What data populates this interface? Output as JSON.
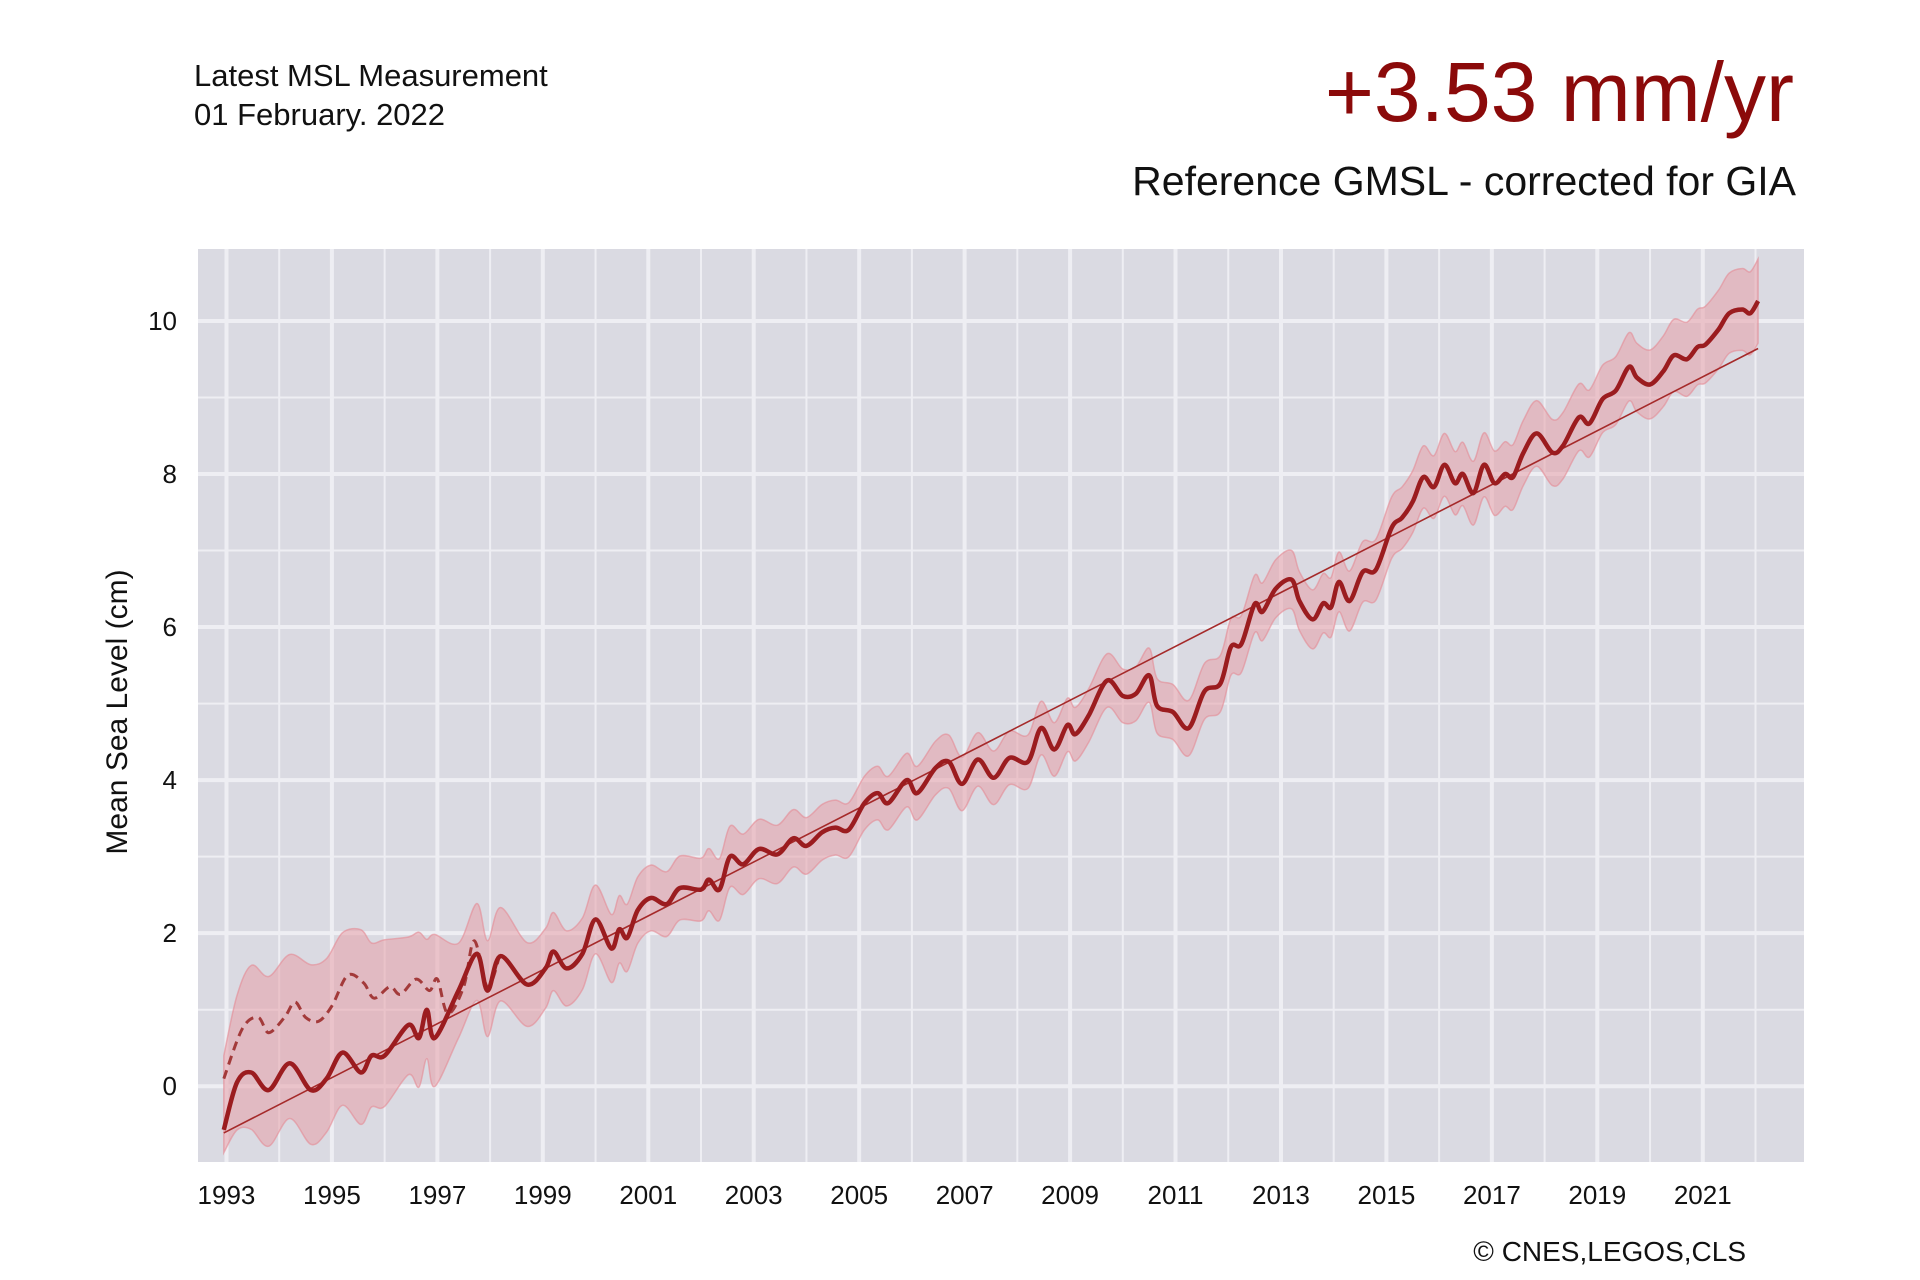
{
  "header": {
    "latest_label": "Latest MSL Measurement",
    "latest_date": "01 February. 2022",
    "rate": "+3.53 mm/yr",
    "subtitle": "Reference GMSL - corrected for GIA",
    "credit": "© CNES,LEGOS,CLS"
  },
  "colors": {
    "accent": "#8b0a0a",
    "series": "#9b1c1f",
    "band": "#e8a0a8",
    "plot_bg": "#dadae2",
    "grid": "#eeeef3"
  },
  "chart_data": {
    "type": "line",
    "title": "Reference GMSL - corrected for GIA",
    "xlabel": "",
    "ylabel": "Mean Sea Level (cm)",
    "xlim": [
      1992.46,
      2022.92
    ],
    "ylim": [
      -0.99,
      10.94
    ],
    "grid": true,
    "x_ticks": [
      "1993",
      "1995",
      "1997",
      "1999",
      "2001",
      "2003",
      "2005",
      "2007",
      "2009",
      "2011",
      "2013",
      "2015",
      "2017",
      "2019",
      "2021"
    ],
    "y_ticks": [
      "0",
      "2",
      "4",
      "6",
      "8",
      "10"
    ],
    "series": [
      {
        "style": "solid",
        "points": [
          [
            1992.95,
            -0.57
          ],
          [
            1993.2,
            0.05
          ],
          [
            1993.47,
            0.18
          ],
          [
            1993.8,
            -0.05
          ],
          [
            1994.2,
            0.3
          ],
          [
            1994.6,
            -0.05
          ],
          [
            1994.9,
            0.1
          ],
          [
            1995.2,
            0.44
          ],
          [
            1995.55,
            0.18
          ],
          [
            1995.75,
            0.4
          ],
          [
            1996.0,
            0.4
          ],
          [
            1996.45,
            0.8
          ],
          [
            1996.65,
            0.63
          ],
          [
            1996.8,
            1.0
          ],
          [
            1996.95,
            0.63
          ],
          [
            1997.4,
            1.25
          ],
          [
            1997.75,
            1.73
          ],
          [
            1997.95,
            1.25
          ],
          [
            1998.2,
            1.7
          ],
          [
            1998.7,
            1.33
          ],
          [
            1999.05,
            1.54
          ],
          [
            1999.2,
            1.76
          ],
          [
            1999.45,
            1.54
          ],
          [
            1999.75,
            1.73
          ],
          [
            2000.0,
            2.18
          ],
          [
            2000.3,
            1.8
          ],
          [
            2000.45,
            2.05
          ],
          [
            2000.6,
            1.94
          ],
          [
            2000.8,
            2.3
          ],
          [
            2001.05,
            2.46
          ],
          [
            2001.35,
            2.38
          ],
          [
            2001.6,
            2.59
          ],
          [
            2002.0,
            2.57
          ],
          [
            2002.15,
            2.7
          ],
          [
            2002.35,
            2.57
          ],
          [
            2002.55,
            3.0
          ],
          [
            2002.8,
            2.9
          ],
          [
            2003.1,
            3.1
          ],
          [
            2003.45,
            3.03
          ],
          [
            2003.75,
            3.24
          ],
          [
            2004.0,
            3.14
          ],
          [
            2004.3,
            3.32
          ],
          [
            2004.55,
            3.38
          ],
          [
            2004.8,
            3.35
          ],
          [
            2005.1,
            3.7
          ],
          [
            2005.35,
            3.83
          ],
          [
            2005.55,
            3.7
          ],
          [
            2005.9,
            4.0
          ],
          [
            2006.1,
            3.83
          ],
          [
            2006.45,
            4.16
          ],
          [
            2006.7,
            4.24
          ],
          [
            2006.95,
            3.95
          ],
          [
            2007.25,
            4.27
          ],
          [
            2007.55,
            4.03
          ],
          [
            2007.85,
            4.29
          ],
          [
            2008.2,
            4.24
          ],
          [
            2008.45,
            4.68
          ],
          [
            2008.7,
            4.4
          ],
          [
            2008.95,
            4.72
          ],
          [
            2009.1,
            4.6
          ],
          [
            2009.35,
            4.84
          ],
          [
            2009.7,
            5.3
          ],
          [
            2010.0,
            5.1
          ],
          [
            2010.25,
            5.13
          ],
          [
            2010.5,
            5.37
          ],
          [
            2010.65,
            4.97
          ],
          [
            2010.95,
            4.89
          ],
          [
            2011.25,
            4.68
          ],
          [
            2011.55,
            5.16
          ],
          [
            2011.85,
            5.26
          ],
          [
            2012.05,
            5.74
          ],
          [
            2012.25,
            5.78
          ],
          [
            2012.5,
            6.3
          ],
          [
            2012.65,
            6.2
          ],
          [
            2012.9,
            6.5
          ],
          [
            2013.2,
            6.62
          ],
          [
            2013.35,
            6.34
          ],
          [
            2013.6,
            6.1
          ],
          [
            2013.8,
            6.31
          ],
          [
            2013.95,
            6.26
          ],
          [
            2014.1,
            6.59
          ],
          [
            2014.3,
            6.34
          ],
          [
            2014.55,
            6.72
          ],
          [
            2014.8,
            6.75
          ],
          [
            2015.1,
            7.3
          ],
          [
            2015.3,
            7.43
          ],
          [
            2015.5,
            7.64
          ],
          [
            2015.7,
            7.96
          ],
          [
            2015.9,
            7.83
          ],
          [
            2016.1,
            8.12
          ],
          [
            2016.3,
            7.88
          ],
          [
            2016.45,
            8.0
          ],
          [
            2016.65,
            7.75
          ],
          [
            2016.85,
            8.12
          ],
          [
            2017.05,
            7.88
          ],
          [
            2017.25,
            8.0
          ],
          [
            2017.4,
            7.96
          ],
          [
            2017.6,
            8.28
          ],
          [
            2017.85,
            8.53
          ],
          [
            2018.15,
            8.28
          ],
          [
            2018.35,
            8.37
          ],
          [
            2018.65,
            8.74
          ],
          [
            2018.85,
            8.66
          ],
          [
            2019.1,
            8.98
          ],
          [
            2019.35,
            9.09
          ],
          [
            2019.6,
            9.4
          ],
          [
            2019.75,
            9.26
          ],
          [
            2020.0,
            9.17
          ],
          [
            2020.25,
            9.34
          ],
          [
            2020.45,
            9.55
          ],
          [
            2020.7,
            9.5
          ],
          [
            2020.9,
            9.66
          ],
          [
            2021.05,
            9.69
          ],
          [
            2021.3,
            9.89
          ],
          [
            2021.5,
            10.1
          ],
          [
            2021.75,
            10.15
          ],
          [
            2021.9,
            10.1
          ],
          [
            2022.05,
            10.26
          ]
        ]
      },
      {
        "style": "dashed",
        "points": [
          [
            1992.95,
            0.1
          ],
          [
            1993.3,
            0.75
          ],
          [
            1993.6,
            0.9
          ],
          [
            1993.8,
            0.7
          ],
          [
            1994.1,
            0.9
          ],
          [
            1994.3,
            1.1
          ],
          [
            1994.5,
            0.9
          ],
          [
            1994.75,
            0.85
          ],
          [
            1995.0,
            1.05
          ],
          [
            1995.3,
            1.45
          ],
          [
            1995.6,
            1.35
          ],
          [
            1995.8,
            1.15
          ],
          [
            1996.1,
            1.3
          ],
          [
            1996.3,
            1.2
          ],
          [
            1996.6,
            1.4
          ],
          [
            1996.85,
            1.25
          ],
          [
            1997.0,
            1.4
          ],
          [
            1997.2,
            0.95
          ],
          [
            1997.5,
            1.3
          ],
          [
            1997.7,
            1.9
          ],
          [
            1997.95,
            1.3
          ],
          [
            1998.2,
            1.75
          ]
        ]
      },
      {
        "style": "trend",
        "points": [
          [
            1992.95,
            -0.61
          ],
          [
            2022.05,
            9.64
          ]
        ]
      }
    ],
    "uncertainty_halfwidth": [
      [
        1992.95,
        0.3
      ],
      [
        1993.3,
        0.75
      ],
      [
        1998.0,
        0.6
      ],
      [
        2000.0,
        0.45
      ],
      [
        2005.0,
        0.35
      ],
      [
        2010.0,
        0.35
      ],
      [
        2015.0,
        0.4
      ],
      [
        2020.0,
        0.45
      ],
      [
        2022.05,
        0.55
      ]
    ]
  }
}
